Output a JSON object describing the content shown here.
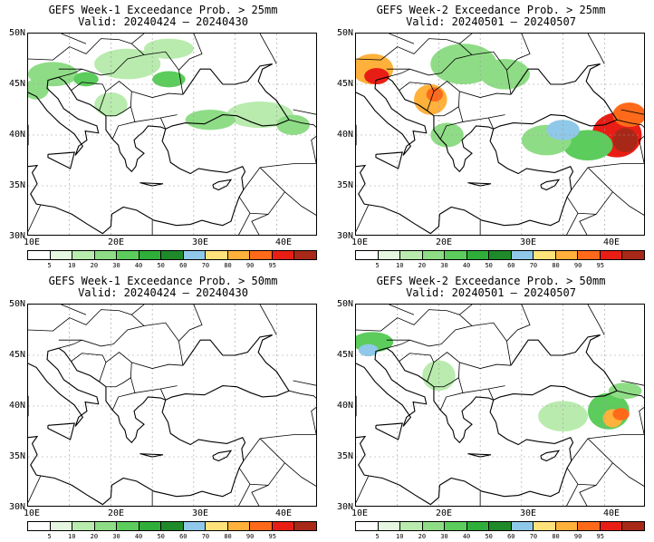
{
  "panels": [
    {
      "title": "GEFS Week-1 Exceedance Prob. > 25mm",
      "valid": "Valid: 20240424 – 20240430",
      "week": 1,
      "threshold_mm": 25
    },
    {
      "title": "GEFS Week-2 Exceedance Prob. > 25mm",
      "valid": "Valid: 20240501 – 20240507",
      "week": 2,
      "threshold_mm": 25
    },
    {
      "title": "GEFS Week-1 Exceedance Prob. > 50mm",
      "valid": "Valid: 20240424 – 20240430",
      "week": 1,
      "threshold_mm": 50
    },
    {
      "title": "GEFS Week-2 Exceedance Prob. > 50mm",
      "valid": "Valid: 20240501 – 20240507",
      "week": 2,
      "threshold_mm": 50
    }
  ],
  "axes": {
    "lat_labels": [
      "50N",
      "45N",
      "40N",
      "35N",
      "30N"
    ],
    "lon_labels": [
      "10E",
      "20E",
      "30E",
      "40E"
    ]
  },
  "colorbar": {
    "labels": [
      "5",
      "10",
      "20",
      "30",
      "40",
      "50",
      "60",
      "70",
      "80",
      "90",
      "95"
    ],
    "colors": [
      "#ffffff",
      "#e5f7e0",
      "#b9ebae",
      "#8fdc86",
      "#5ccc5c",
      "#2fae3a",
      "#1f8a2a",
      "#8fc8e8",
      "#ffe27a",
      "#ffb13b",
      "#ff6a1a",
      "#e81e14",
      "#a82818"
    ]
  }
}
